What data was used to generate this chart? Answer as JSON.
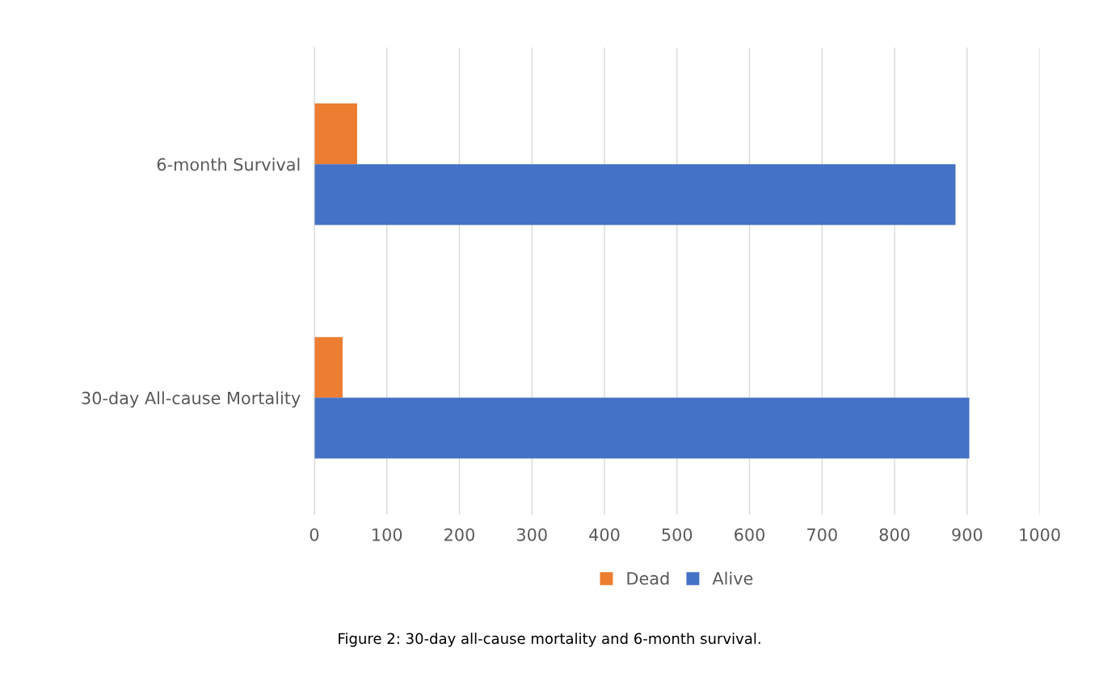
{
  "chart_data": {
    "type": "bar",
    "orientation": "horizontal",
    "categories": [
      "6-month Survival",
      "30-day All-cause Mortality"
    ],
    "series": [
      {
        "name": "Dead",
        "color": "#ed7d31",
        "values": [
          59,
          39
        ]
      },
      {
        "name": "Alive",
        "color": "#4472c4",
        "values": [
          884,
          903
        ]
      }
    ],
    "xlim": [
      0,
      1000
    ],
    "xticks": [
      0,
      100,
      200,
      300,
      400,
      500,
      600,
      700,
      800,
      900,
      1000
    ],
    "grid": "x",
    "legend": "bottom",
    "annotations": [
      "Figure 2: 30-day all-cause mortality and 6-month survival."
    ]
  }
}
